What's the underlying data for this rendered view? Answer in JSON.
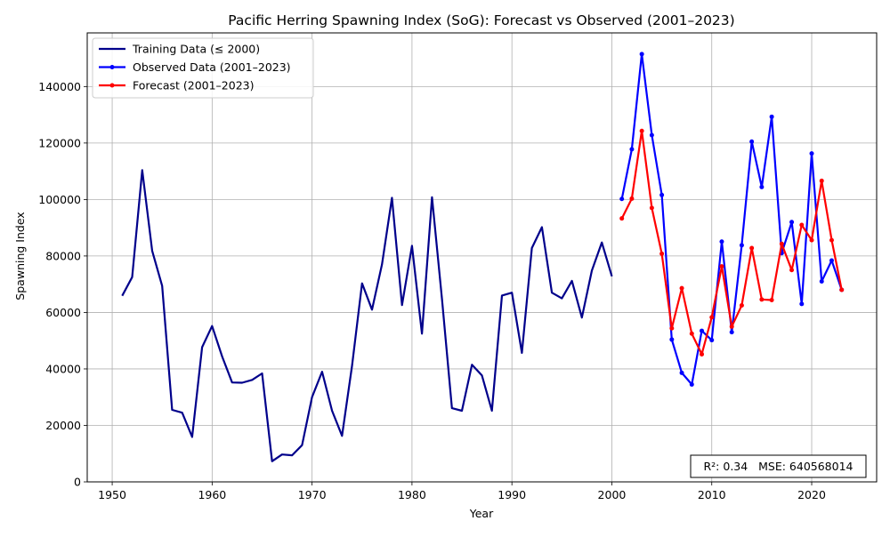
{
  "chart_data": {
    "type": "line",
    "title": "Pacific Herring Spawning Index (SoG): Forecast vs Observed (2001–2023)",
    "xlabel": "Year",
    "ylabel": "Spawning Index",
    "xlim": [
      1947.5,
      2026.5
    ],
    "ylim": [
      0,
      159000
    ],
    "x_ticks": [
      1950,
      1960,
      1970,
      1980,
      1990,
      2000,
      2010,
      2020
    ],
    "y_ticks": [
      0,
      20000,
      40000,
      60000,
      80000,
      100000,
      120000,
      140000
    ],
    "grid": true,
    "legend_position": "top-left",
    "series": [
      {
        "name": "Training Data (≤ 2000)",
        "color": "#00008b",
        "markers": false,
        "x": [
          1951,
          1952,
          1953,
          1954,
          1955,
          1956,
          1957,
          1958,
          1959,
          1960,
          1961,
          1962,
          1963,
          1964,
          1965,
          1966,
          1967,
          1968,
          1969,
          1970,
          1971,
          1972,
          1973,
          1974,
          1975,
          1976,
          1977,
          1978,
          1979,
          1980,
          1981,
          1982,
          1983,
          1984,
          1985,
          1986,
          1987,
          1988,
          1989,
          1990,
          1991,
          1992,
          1993,
          1994,
          1995,
          1996,
          1997,
          1998,
          1999,
          2000
        ],
        "values": [
          65900,
          72500,
          110400,
          81800,
          69400,
          25500,
          24500,
          15900,
          47700,
          55200,
          44400,
          35200,
          35100,
          36100,
          38400,
          7300,
          9700,
          9400,
          13000,
          30000,
          39000,
          25200,
          16300,
          41000,
          70300,
          61000,
          77000,
          100600,
          62600,
          83600,
          52500,
          100800,
          64800,
          26100,
          25200,
          41500,
          37700,
          25200,
          66000,
          67000,
          45700,
          82800,
          90200,
          67000,
          65000,
          71200,
          58200,
          74800,
          84800,
          72800
        ]
      },
      {
        "name": "Observed Data (2001–2023)",
        "color": "#0000ff",
        "markers": true,
        "x": [
          2001,
          2002,
          2003,
          2004,
          2005,
          2006,
          2007,
          2008,
          2009,
          2010,
          2011,
          2012,
          2013,
          2014,
          2015,
          2016,
          2017,
          2018,
          2019,
          2020,
          2021,
          2022,
          2023
        ],
        "values": [
          100200,
          117800,
          151500,
          122800,
          101600,
          50400,
          38600,
          34500,
          53500,
          50200,
          85100,
          53000,
          83800,
          120500,
          104400,
          129300,
          81000,
          92000,
          63000,
          116300,
          71000,
          78400,
          68000
        ]
      },
      {
        "name": "Forecast (2001–2023)",
        "color": "#ff0000",
        "markers": true,
        "x": [
          2001,
          2002,
          2003,
          2004,
          2005,
          2006,
          2007,
          2008,
          2009,
          2010,
          2011,
          2012,
          2013,
          2014,
          2015,
          2016,
          2017,
          2018,
          2019,
          2020,
          2021,
          2022,
          2023
        ],
        "values": [
          93300,
          100300,
          124300,
          97000,
          80800,
          54400,
          68600,
          52500,
          45200,
          58300,
          76300,
          55000,
          62500,
          82800,
          64600,
          64400,
          84300,
          75000,
          91000,
          85600,
          106600,
          85600,
          68000
        ]
      }
    ],
    "annotation": "R²: 0.34   MSE: 640568014"
  }
}
